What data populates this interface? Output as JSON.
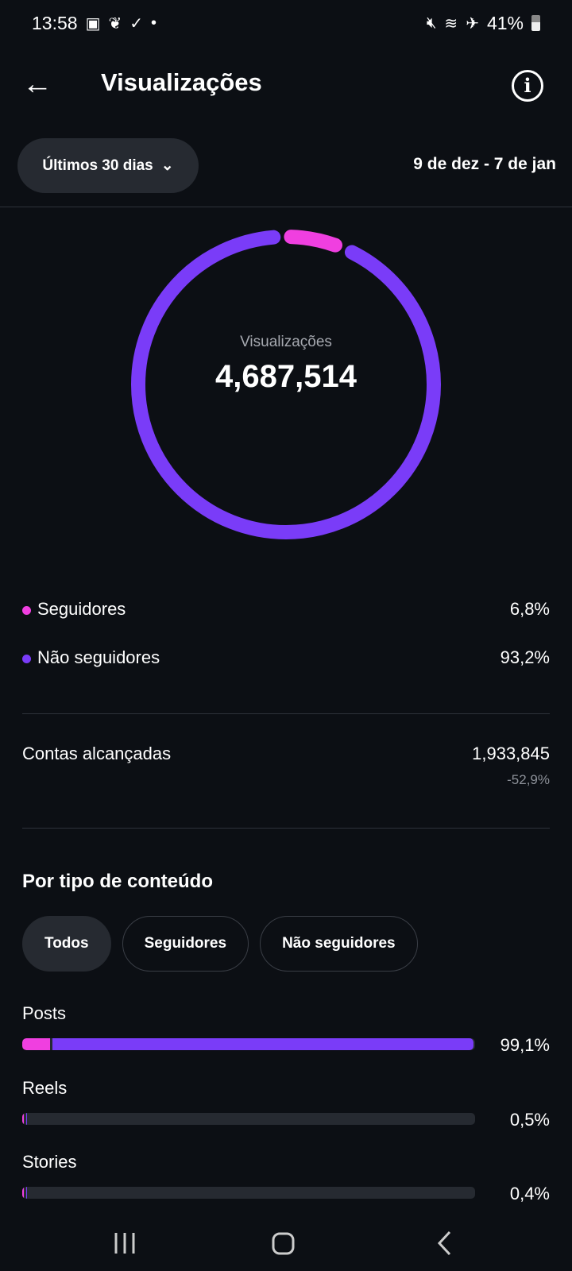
{
  "status": {
    "time": "13:58",
    "battery": "41%"
  },
  "header": {
    "title": "Visualizações"
  },
  "filter": {
    "range": "Últimos 30 dias",
    "dates": "9 de dez - 7 de jan"
  },
  "summary": {
    "label": "Visualizações",
    "total": "4,687,514",
    "segments": [
      {
        "name": "Seguidores",
        "percent": 6.8,
        "display": "6,8%",
        "color": "#f03fe0"
      },
      {
        "name": "Não seguidores",
        "percent": 93.2,
        "display": "93,2%",
        "color": "#7a3cf8"
      }
    ]
  },
  "reach": {
    "label": "Contas alcançadas",
    "value": "1,933,845",
    "change": "-52,9%"
  },
  "content": {
    "title": "Por tipo de conteúdo",
    "chips": [
      "Todos",
      "Seguidores",
      "Não seguidores"
    ],
    "types": [
      {
        "name": "Posts",
        "display": "99,1%",
        "total": 99.1,
        "followers": 6.1
      },
      {
        "name": "Reels",
        "display": "0,5%",
        "total": 0.5,
        "followers": 0.3
      },
      {
        "name": "Stories",
        "display": "0,4%",
        "total": 0.4,
        "followers": 0.3
      }
    ]
  }
}
